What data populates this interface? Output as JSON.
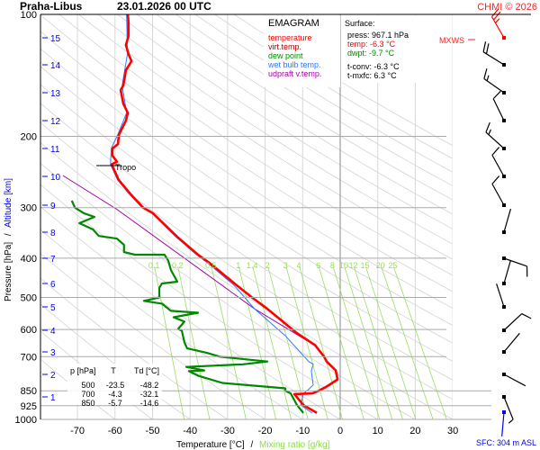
{
  "header": {
    "station": "Praha-Libus",
    "datetime": "23.01.2026 00 UTC",
    "copyright": "CHMI © 2026"
  },
  "legend": {
    "title": "EMAGRAM",
    "items": [
      {
        "label": "temperature",
        "color": "#ff0000"
      },
      {
        "label": "virt.temp.",
        "color": "#aa0000"
      },
      {
        "label": "dew point",
        "color": "#008800"
      },
      {
        "label": "wet bulb temp.",
        "color": "#3377ff"
      },
      {
        "label": "udpraft v.temp.",
        "color": "#aa00aa"
      }
    ]
  },
  "surface": {
    "title": "Surface:",
    "press": "press: 967.1 hPa",
    "temp": "temp: -6.3 °C",
    "dwpt": "dwpt: -9.7 °C",
    "tconv": "t-conv: -6.3 °C",
    "tmxfc": "t-mxfc: 6.3 °C"
  },
  "table": {
    "headers": [
      "p [hPa]",
      "T",
      "Td [°C]"
    ],
    "rows": [
      [
        "500",
        "-23.5",
        "-48.2"
      ],
      [
        "700",
        "-4.3",
        "-32.1"
      ],
      [
        "850",
        "-5.7",
        "-14.6"
      ]
    ]
  },
  "labels": {
    "tropo": "Tropo",
    "mxws": "MXWS",
    "sfc": "SFC: 304 m ASL"
  },
  "chart_data": {
    "type": "line",
    "title": "EMAGRAM",
    "xlabel": "Temperature [°C]",
    "xlabel_sep": "/",
    "xlabel2": "Mixing ratio [g/kg]",
    "ylabel": "Pressure [hPa]",
    "ylabel_sep": "/",
    "ylabel2": "Altitude [km]",
    "y_scale": "log",
    "ylim": [
      1000,
      100
    ],
    "xlim": [
      -80,
      40
    ],
    "x_ticks": [
      -70,
      -60,
      -50,
      -40,
      -30,
      -20,
      -10,
      0,
      10,
      20,
      30
    ],
    "p_ticks": [
      100,
      200,
      300,
      400,
      500,
      600,
      700,
      850,
      925,
      1000
    ],
    "altitude_km_ticks": [
      1,
      2,
      3,
      4,
      5,
      6,
      7,
      8,
      9,
      10,
      11,
      12,
      13,
      14,
      15
    ],
    "mixing_ratio_labels": [
      "0.1",
      "0.2",
      "0.5",
      "1",
      "1.4",
      "2",
      "3",
      "4",
      "6",
      "8",
      "10",
      "12",
      "15",
      "20",
      "25"
    ],
    "mixing_ratio_values": [
      0.1,
      0.2,
      0.5,
      1,
      1.4,
      2,
      3,
      4,
      6,
      8,
      10,
      12,
      15,
      20,
      25
    ],
    "dry_adiabats_theta_c": [
      -60,
      -50,
      -40,
      -30,
      -20,
      -10,
      0,
      10,
      20,
      30,
      40,
      50,
      60,
      70,
      80,
      90,
      100,
      110,
      120,
      130,
      140,
      150,
      160,
      170,
      180,
      190,
      200
    ],
    "tropopause_hpa": 234.7,
    "colors": {
      "temperature": "#ff0000",
      "dewpoint": "#008800",
      "wetbulb": "#3377ff",
      "parcel": "#aa00aa",
      "mixing_ratio": "#99dd66",
      "altitude": "#0000cc"
    },
    "series": [
      {
        "name": "temperature",
        "points": [
          [
            100,
            -56.6
          ],
          [
            104.7,
            -56.4
          ],
          [
            113.1,
            -56.4
          ],
          [
            119,
            -57.1
          ],
          [
            125.3,
            -56.4
          ],
          [
            130.5,
            -55.6
          ],
          [
            137.4,
            -57.1
          ],
          [
            149.8,
            -57.8
          ],
          [
            153.7,
            -58.5
          ],
          [
            166.1,
            -57.8
          ],
          [
            175,
            -56.6
          ],
          [
            183,
            -57.1
          ],
          [
            198.5,
            -59.0
          ],
          [
            209,
            -59.2
          ],
          [
            214.3,
            -60.7
          ],
          [
            223.1,
            -60.7
          ],
          [
            231.1,
            -59.5
          ],
          [
            234.7,
            -60.9
          ],
          [
            256.5,
            -59.0
          ],
          [
            277.5,
            -55.9
          ],
          [
            300,
            -52.5
          ],
          [
            309.6,
            -49.9
          ],
          [
            354.3,
            -43.4
          ],
          [
            392,
            -37.9
          ],
          [
            410.9,
            -34.8
          ],
          [
            466.3,
            -27.6
          ],
          [
            500,
            -23.5
          ],
          [
            533.4,
            -19.4
          ],
          [
            612.5,
            -11.5
          ],
          [
            655.7,
            -6.7
          ],
          [
            700,
            -4.3
          ],
          [
            719.8,
            -3.6
          ],
          [
            757.1,
            -1.2
          ],
          [
            796.7,
            -0.7
          ],
          [
            829.8,
            -3.6
          ],
          [
            850,
            -5.7
          ],
          [
            862.6,
            -7.4
          ],
          [
            866,
            -12.2
          ],
          [
            922,
            -9.8
          ],
          [
            964,
            -6.2
          ]
        ]
      },
      {
        "name": "dew point",
        "points": [
          [
            288.4,
            -71.5
          ],
          [
            300,
            -70.7
          ],
          [
            309.6,
            -68.3
          ],
          [
            316.2,
            -65.5
          ],
          [
            327.7,
            -69.5
          ],
          [
            339.6,
            -65.9
          ],
          [
            352.4,
            -64.3
          ],
          [
            357.8,
            -59.5
          ],
          [
            370.8,
            -57.6
          ],
          [
            386.3,
            -57.6
          ],
          [
            392,
            -54.7
          ],
          [
            392,
            -46.8
          ],
          [
            406,
            -45.8
          ],
          [
            427.7,
            -45.1
          ],
          [
            457.1,
            -43.4
          ],
          [
            461.7,
            -47.5
          ],
          [
            473.7,
            -48.2
          ],
          [
            500,
            -48.2
          ],
          [
            509.6,
            -52.3
          ],
          [
            517.8,
            -47.5
          ],
          [
            539.6,
            -45.1
          ],
          [
            545.2,
            -37.9
          ],
          [
            559.4,
            -44.4
          ],
          [
            573.8,
            -41.5
          ],
          [
            598,
            -43.2
          ],
          [
            604,
            -42.2
          ],
          [
            644.7,
            -41.5
          ],
          [
            668,
            -40.8
          ],
          [
            685,
            -35.5
          ],
          [
            700,
            -32.1
          ],
          [
            719.8,
            -19.4
          ],
          [
            731,
            -25.9
          ],
          [
            742,
            -41.0
          ],
          [
            757.1,
            -36.2
          ],
          [
            760,
            -40.3
          ],
          [
            780,
            -37.9
          ],
          [
            813,
            -31.4
          ],
          [
            838,
            -14.6
          ],
          [
            850,
            -14.6
          ],
          [
            862.6,
            -13.2
          ],
          [
            922,
            -11.5
          ],
          [
            964,
            -9.8
          ]
        ]
      },
      {
        "name": "wet bulb temp.",
        "points": [
          [
            100,
            -56.9
          ],
          [
            125.3,
            -56.7
          ],
          [
            150,
            -58.1
          ],
          [
            175,
            -56.9
          ],
          [
            198.5,
            -59.3
          ],
          [
            214.3,
            -61.0
          ],
          [
            234.7,
            -61.2
          ],
          [
            256.5,
            -59.3
          ],
          [
            277.5,
            -56.2
          ],
          [
            300,
            -52.8
          ],
          [
            309.6,
            -50.2
          ],
          [
            354.3,
            -43.8
          ],
          [
            392,
            -38.3
          ],
          [
            410.9,
            -35.3
          ],
          [
            466.3,
            -28.3
          ],
          [
            533.4,
            -22.8
          ],
          [
            621.8,
            -14.6
          ],
          [
            719.8,
            -8.4
          ],
          [
            731,
            -7.2
          ],
          [
            760,
            -7.7
          ],
          [
            822,
            -7.2
          ],
          [
            843,
            -8.4
          ],
          [
            862.6,
            -9.8
          ],
          [
            922,
            -10.5
          ],
          [
            964,
            -7.5
          ]
        ]
      },
      {
        "name": "udpraft v.temp.",
        "points": [
          [
            249.9,
            -73.9
          ],
          [
            303,
            -59.5
          ],
          [
            533.4,
            -22.8
          ],
          [
            651,
            -7.4
          ]
        ]
      }
    ],
    "winds": [
      {
        "km": 15,
        "dir": 330,
        "kt": 25,
        "max": true
      },
      {
        "km": 14,
        "dir": 302,
        "kt": 20
      },
      {
        "km": 13,
        "dir": 305,
        "kt": 15
      },
      {
        "km": 12,
        "dir": 334,
        "kt": 10
      },
      {
        "km": 11,
        "dir": 312,
        "kt": 15
      },
      {
        "km": 10,
        "dir": 331,
        "kt": 10
      },
      {
        "km": 9,
        "dir": 331,
        "kt": 10
      },
      {
        "km": 8,
        "dir": 16,
        "kt": 3
      },
      {
        "km": 7,
        "dir": 109,
        "kt": 10
      },
      {
        "km": 6,
        "dir": 16,
        "kt": 3
      },
      {
        "km": 5,
        "dir": 342,
        "kt": 3
      },
      {
        "km": 4,
        "dir": 47,
        "kt": 10
      },
      {
        "km": 3,
        "dir": 40,
        "kt": 3
      },
      {
        "km": 2,
        "dir": 118,
        "kt": 3
      },
      {
        "km": 1,
        "dir": 158,
        "kt": 5
      },
      {
        "km": 0,
        "dir": 185,
        "kt": 3,
        "surface": true
      }
    ]
  }
}
